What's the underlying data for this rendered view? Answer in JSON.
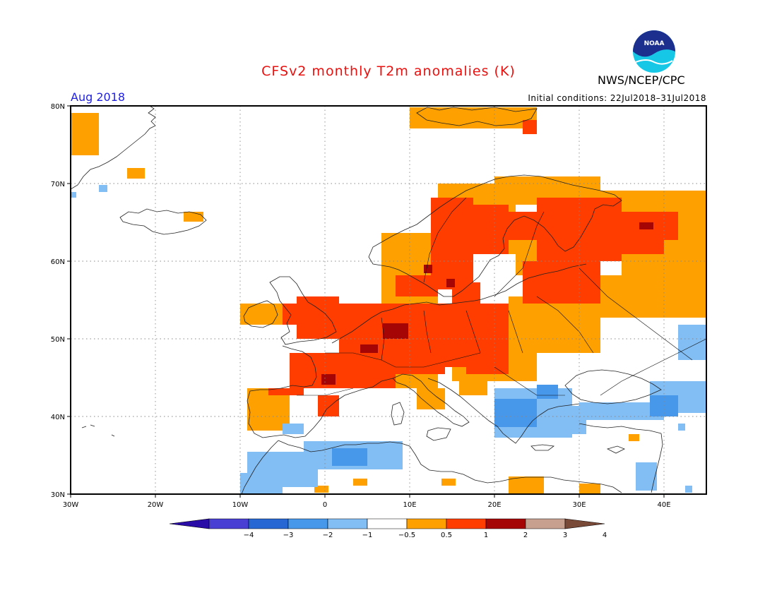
{
  "header": {
    "title": "CFSv2 monthly T2m anomalies (K)",
    "agency": "NWS/NCEP/CPC",
    "month": "Aug 2018",
    "initial_conditions": "Initial conditions: 22Jul2018–31Jul2018",
    "logo_text": "NOAA"
  },
  "map": {
    "lat_labels": [
      "80N",
      "70N",
      "60N",
      "50N",
      "40N",
      "30N"
    ],
    "lon_labels": [
      "30W",
      "20W",
      "10W",
      "0",
      "10E",
      "20E",
      "30E",
      "40E"
    ]
  },
  "legend": {
    "tick_labels": [
      "−4",
      "−3",
      "−2",
      "−1",
      "−0.5",
      "0.5",
      "1",
      "2",
      "3",
      "4"
    ],
    "colors": [
      "#2a0ca6",
      "#4a3fd3",
      "#2767d4",
      "#4797ea",
      "#82bdf4",
      "#ffffff",
      "#fda000",
      "#ff3d00",
      "#a60505",
      "#c8a090",
      "#7a4a38"
    ]
  }
}
